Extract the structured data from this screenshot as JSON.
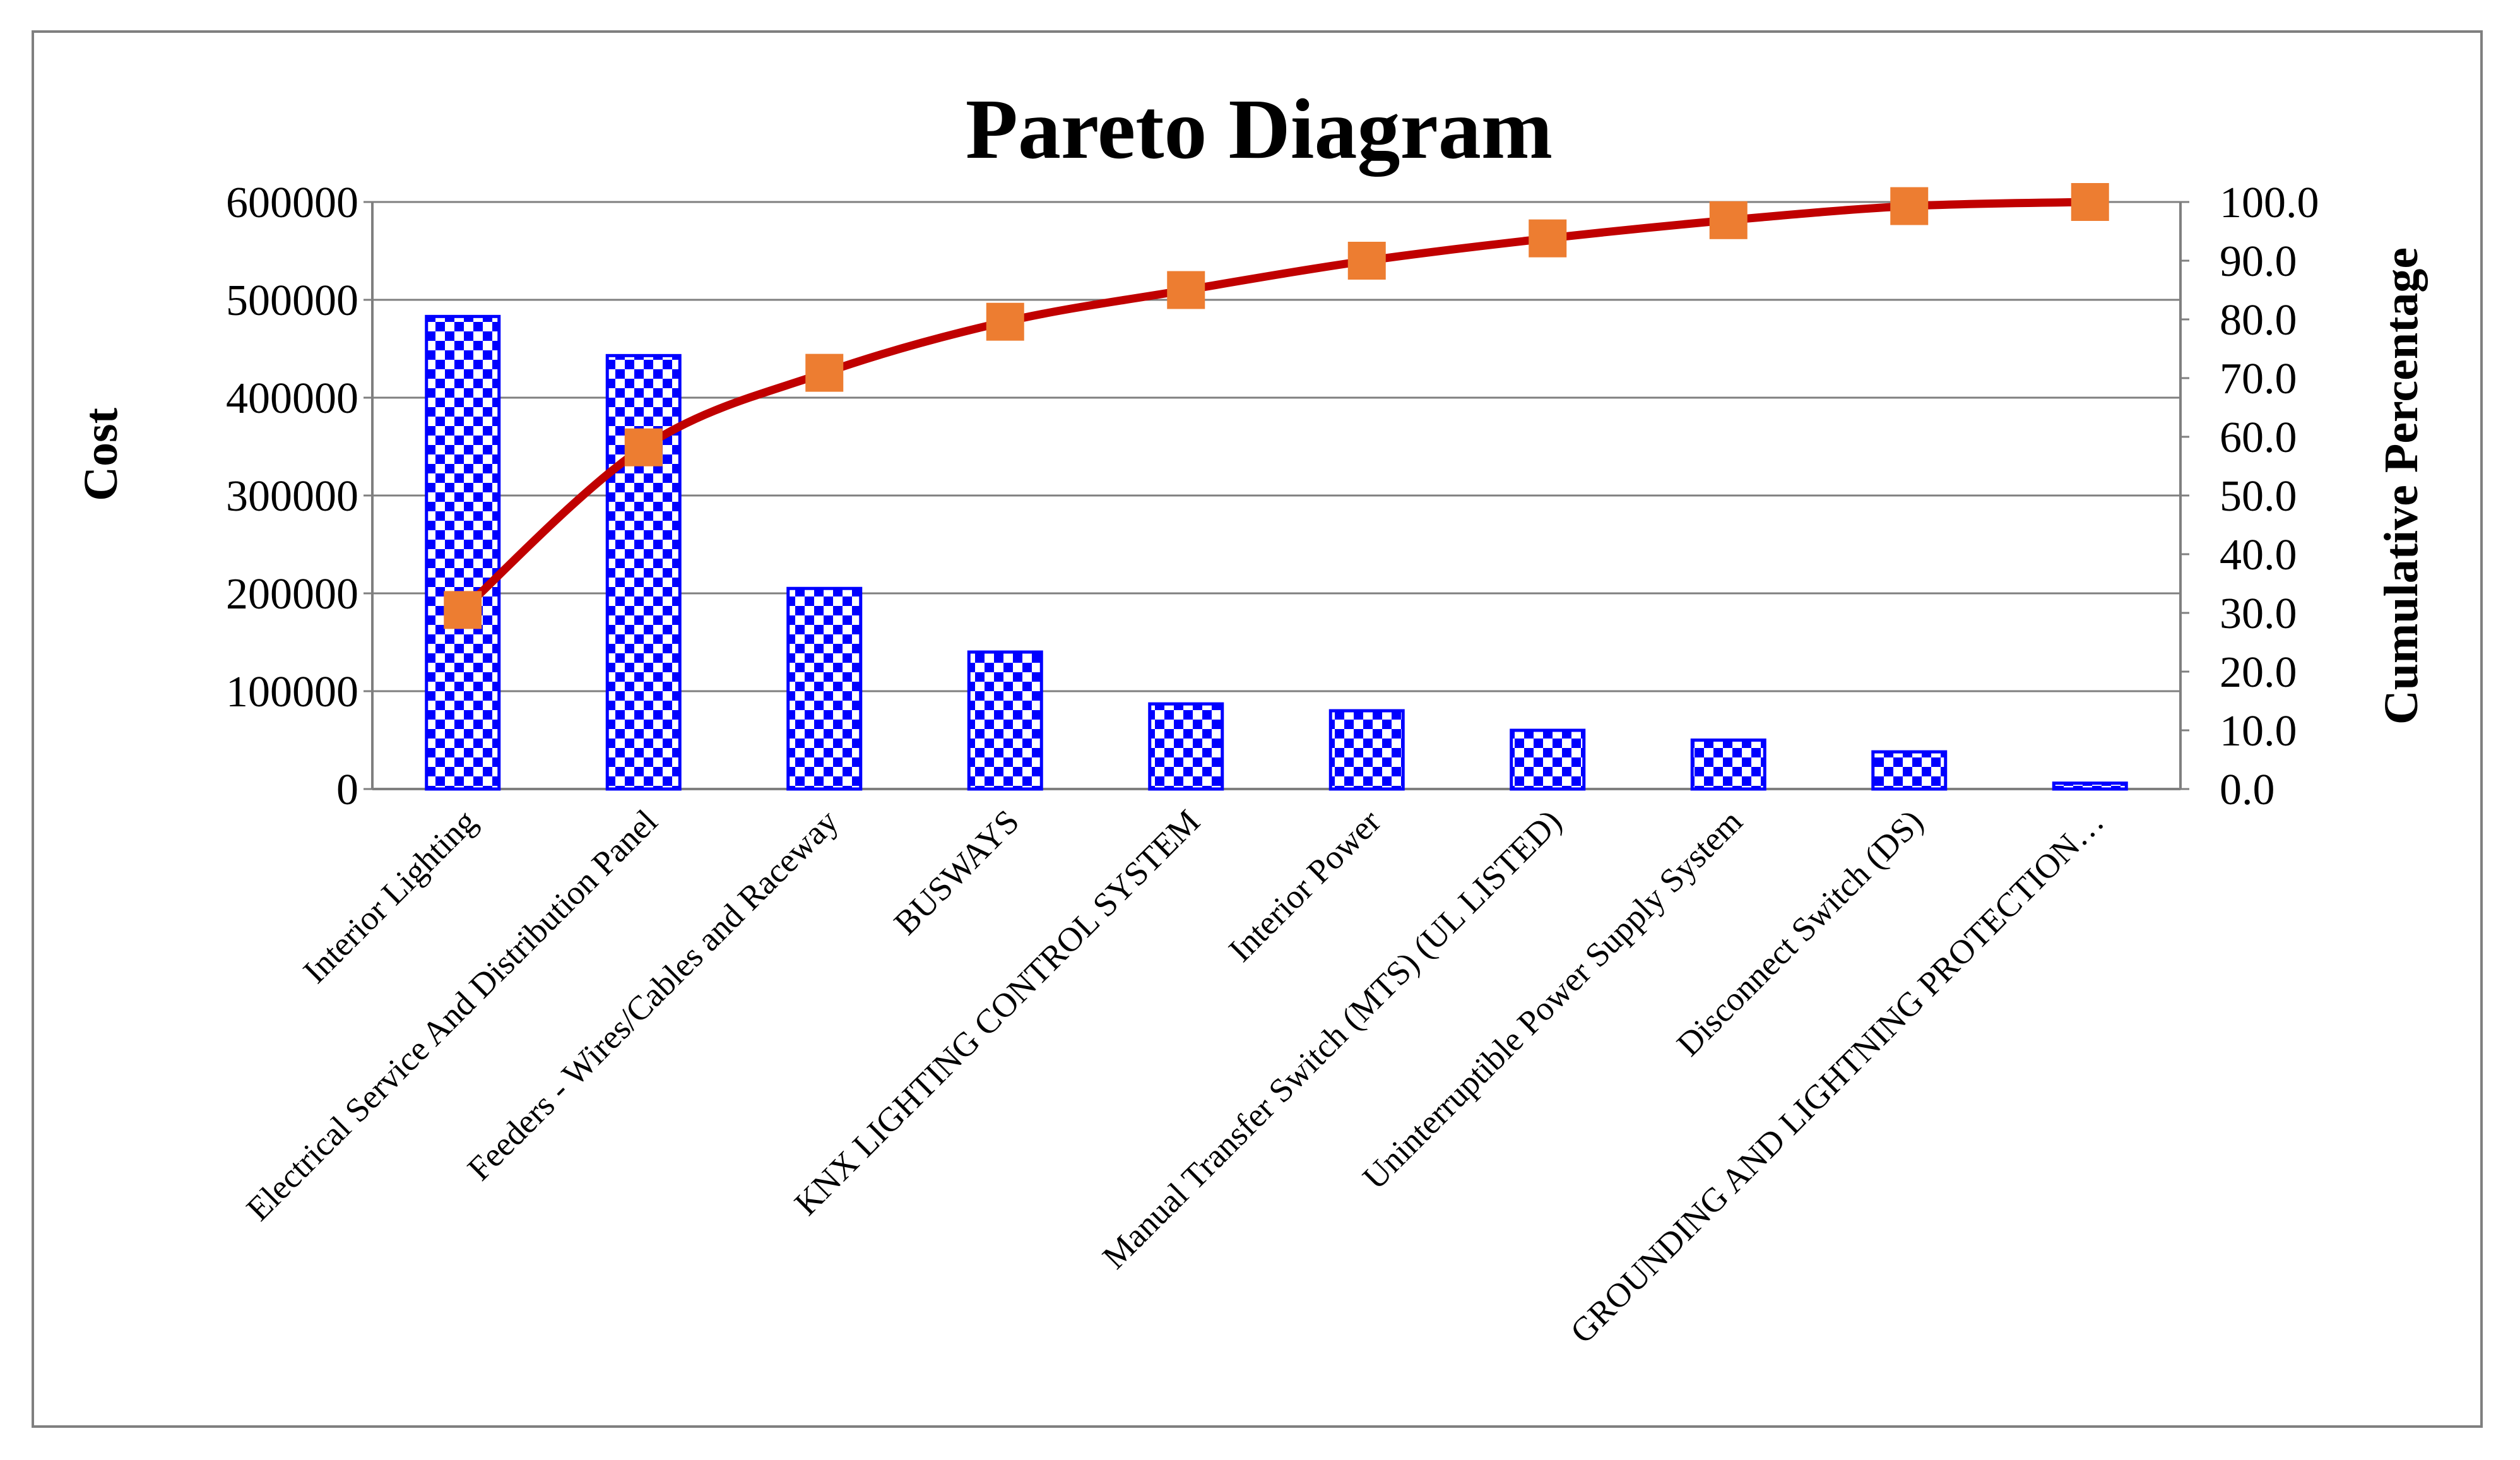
{
  "chart_data": {
    "type": "bar",
    "title": "Pareto Diagram",
    "xlabel": "",
    "ylabel": "Cost",
    "y2label": "Cumulative Percentage",
    "ylim": [
      0,
      600000
    ],
    "y2lim": [
      0,
      100
    ],
    "y_ticks": [
      "0",
      "100000",
      "200000",
      "300000",
      "400000",
      "500000",
      "600000"
    ],
    "y2_ticks": [
      "0.0",
      "10.0",
      "20.0",
      "30.0",
      "40.0",
      "50.0",
      "60.0",
      "70.0",
      "80.0",
      "90.0",
      "100.0"
    ],
    "grid": true,
    "legend": "none",
    "categories": [
      "Interior Lighting",
      "Electrical Service And Distribution Panel",
      "Feeders - Wires/Cables and Raceway",
      "BUSWAYS",
      "KNX LIGHTING CONTROL SYSTEM",
      "Interior Power",
      "Manual Transfer Switch (MTS) (UL LISTED)",
      "Uninterruptible Power Supply System",
      "Disconnect Switch (DS)",
      "GROUNDING AND LIGHTNING PROTECTION…"
    ],
    "series": [
      {
        "type": "bar",
        "axis": "left",
        "values": [
          483000,
          443000,
          205000,
          140000,
          87000,
          80000,
          60000,
          50000,
          38000,
          6000
        ]
      },
      {
        "type": "line",
        "axis": "right",
        "values": [
          30.5,
          58.2,
          70.9,
          79.6,
          85.0,
          90.0,
          93.8,
          96.9,
          99.3,
          100.0
        ]
      }
    ],
    "colors": {
      "bar_fill": "#0000ff",
      "bar_check": "#ffffff",
      "line": "#c00000",
      "marker": "#ed7d31",
      "grid": "#7f7f7f",
      "border": "#7f7f7f"
    }
  }
}
